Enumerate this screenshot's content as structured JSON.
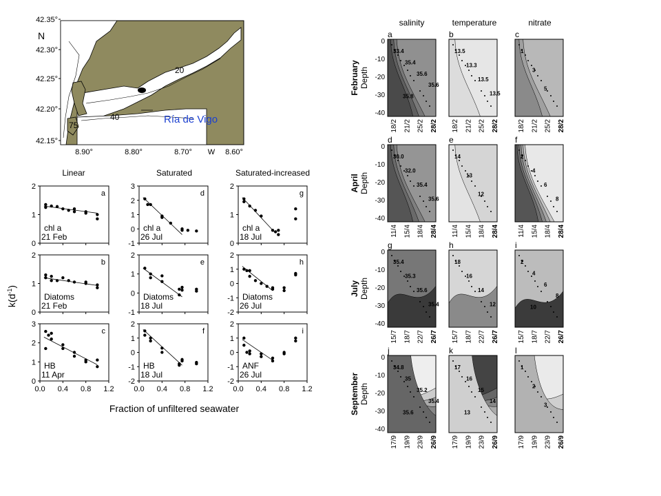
{
  "map": {
    "lat_labels": [
      "42.35°",
      "42.30°",
      "42.25°",
      "42.20°",
      "42.15°"
    ],
    "lon_labels": [
      "8.90°",
      "8.80°",
      "8.70°",
      "W",
      "8.60°"
    ],
    "north": "N",
    "place": "Ría de Vigo",
    "depths": [
      "20",
      "40",
      "75"
    ],
    "colors": {
      "land": "#8f8a5f",
      "sea": "#ffffff",
      "place": "#1a3fd0"
    }
  },
  "dilution": {
    "columns": [
      "Linear",
      "Saturated",
      "Saturated-increased"
    ],
    "ylabel": "k(d",
    "ylabel_sup": "-1",
    "ylabel_close": ")",
    "xlabel": "Fraction of unfiltered seawater",
    "xticks": [
      "0.0",
      "0.4",
      "0.8",
      "1.2"
    ],
    "panels": [
      {
        "letter": "a",
        "l1": "chl a",
        "l2": "21 Feb",
        "ymin": 0,
        "ymax": 2,
        "ticks": [
          "0",
          "1",
          "2"
        ],
        "pts": [
          [
            0.1,
            1.35
          ],
          [
            0.1,
            1.25
          ],
          [
            0.2,
            1.3
          ],
          [
            0.3,
            1.28
          ],
          [
            0.4,
            1.2
          ],
          [
            0.5,
            1.15
          ],
          [
            0.6,
            1.2
          ],
          [
            0.6,
            1.1
          ],
          [
            0.8,
            1.1
          ],
          [
            0.8,
            1.05
          ],
          [
            1.0,
            1.0
          ],
          [
            1.0,
            0.85
          ]
        ],
        "line": [
          [
            0.07,
            1.3
          ],
          [
            1.0,
            1.05
          ]
        ]
      },
      {
        "letter": "d",
        "l1": "chl a",
        "l2": "26 Jul",
        "ymin": -1,
        "ymax": 3,
        "ticks": [
          "-1",
          "0",
          "1",
          "2",
          "3"
        ],
        "pts": [
          [
            0.1,
            2.1
          ],
          [
            0.15,
            1.7
          ],
          [
            0.2,
            1.7
          ],
          [
            0.4,
            0.9
          ],
          [
            0.4,
            0.8
          ],
          [
            0.55,
            0.4
          ],
          [
            0.75,
            -0.1
          ],
          [
            0.75,
            0.0
          ],
          [
            0.85,
            -0.1
          ],
          [
            1.0,
            -0.15
          ]
        ],
        "line": [
          [
            0.07,
            2.2
          ],
          [
            0.75,
            -0.4
          ]
        ]
      },
      {
        "letter": "g",
        "l1": "chl a",
        "l2": "18 Jul",
        "ymin": 0,
        "ymax": 2,
        "ticks": [
          "0",
          "1",
          "2"
        ],
        "pts": [
          [
            0.1,
            1.55
          ],
          [
            0.1,
            1.45
          ],
          [
            0.2,
            1.3
          ],
          [
            0.3,
            1.15
          ],
          [
            0.4,
            0.95
          ],
          [
            0.6,
            0.45
          ],
          [
            0.65,
            0.4
          ],
          [
            0.7,
            0.3
          ],
          [
            0.7,
            0.45
          ],
          [
            1.0,
            1.2
          ],
          [
            1.0,
            0.85
          ]
        ],
        "line": [
          [
            0.07,
            1.6
          ],
          [
            0.65,
            0.35
          ]
        ]
      },
      {
        "letter": "b",
        "l1": "Diatoms",
        "l2": "21 Feb",
        "ymin": 0,
        "ymax": 2,
        "ticks": [
          "0",
          "1",
          "2"
        ],
        "pts": [
          [
            0.1,
            1.3
          ],
          [
            0.1,
            1.2
          ],
          [
            0.2,
            1.25
          ],
          [
            0.2,
            1.1
          ],
          [
            0.3,
            1.1
          ],
          [
            0.4,
            1.2
          ],
          [
            0.5,
            1.1
          ],
          [
            0.6,
            1.05
          ],
          [
            0.8,
            1.05
          ],
          [
            0.8,
            1.0
          ],
          [
            1.0,
            0.95
          ],
          [
            1.0,
            0.85
          ]
        ],
        "line": [
          [
            0.07,
            1.2
          ],
          [
            1.0,
            0.93
          ]
        ]
      },
      {
        "letter": "e",
        "l1": "Diatoms",
        "l2": "18 Jul",
        "ymin": -1,
        "ymax": 2,
        "ticks": [
          "-1",
          "0",
          "1",
          "2"
        ],
        "pts": [
          [
            0.1,
            1.3
          ],
          [
            0.2,
            1.0
          ],
          [
            0.2,
            0.8
          ],
          [
            0.4,
            0.9
          ],
          [
            0.4,
            0.6
          ],
          [
            0.7,
            -0.1
          ],
          [
            0.7,
            0.2
          ],
          [
            0.75,
            0.3
          ],
          [
            0.75,
            0.15
          ],
          [
            1.0,
            0.2
          ],
          [
            1.0,
            0.1
          ]
        ],
        "line": [
          [
            0.07,
            1.3
          ],
          [
            0.75,
            -0.2
          ]
        ]
      },
      {
        "letter": "h",
        "l1": "Diatoms",
        "l2": "26 Jul",
        "ymin": -2,
        "ymax": 2,
        "ticks": [
          "-2",
          "-1",
          "0",
          "1",
          "2"
        ],
        "pts": [
          [
            0.1,
            1.0
          ],
          [
            0.15,
            0.9
          ],
          [
            0.2,
            0.9
          ],
          [
            0.2,
            0.5
          ],
          [
            0.3,
            0.2
          ],
          [
            0.4,
            0.0
          ],
          [
            0.5,
            -0.2
          ],
          [
            0.6,
            -0.4
          ],
          [
            0.6,
            -0.3
          ],
          [
            0.8,
            -0.3
          ],
          [
            0.8,
            -0.5
          ],
          [
            1.0,
            0.7
          ],
          [
            1.0,
            0.6
          ]
        ],
        "line": [
          [
            0.07,
            1.2
          ],
          [
            0.6,
            -0.5
          ]
        ]
      },
      {
        "letter": "c",
        "l1": "HB",
        "l2": "11 Apr",
        "ymin": 0,
        "ymax": 3,
        "ticks": [
          "0",
          "1",
          "2",
          "3"
        ],
        "pts": [
          [
            0.1,
            2.6
          ],
          [
            0.15,
            2.4
          ],
          [
            0.2,
            2.5
          ],
          [
            0.2,
            2.2
          ],
          [
            0.1,
            1.7
          ],
          [
            0.4,
            1.9
          ],
          [
            0.4,
            1.7
          ],
          [
            0.6,
            1.5
          ],
          [
            0.6,
            1.3
          ],
          [
            0.8,
            1.1
          ],
          [
            0.8,
            1.0
          ],
          [
            1.0,
            1.1
          ],
          [
            1.0,
            0.75
          ]
        ],
        "line": [
          [
            0.07,
            2.3
          ],
          [
            1.0,
            0.85
          ]
        ]
      },
      {
        "letter": "f",
        "l1": "HB",
        "l2": "18 Jul",
        "ymin": -2,
        "ymax": 2,
        "ticks": [
          "-2",
          "-1",
          "0",
          "1",
          "2"
        ],
        "pts": [
          [
            0.1,
            1.5
          ],
          [
            0.1,
            1.2
          ],
          [
            0.2,
            1.0
          ],
          [
            0.2,
            0.8
          ],
          [
            0.4,
            0.3
          ],
          [
            0.4,
            0.0
          ],
          [
            0.7,
            -0.8
          ],
          [
            0.7,
            -0.9
          ],
          [
            0.75,
            -0.6
          ],
          [
            0.75,
            -0.5
          ],
          [
            1.0,
            -0.7
          ],
          [
            1.0,
            -0.8
          ]
        ],
        "line": [
          [
            0.07,
            1.6
          ],
          [
            0.75,
            -0.9
          ]
        ]
      },
      {
        "letter": "i",
        "l1": "ANF",
        "l2": "26 Jul",
        "ymin": -2,
        "ymax": 2,
        "ticks": [
          "-2",
          "-1",
          "0",
          "1",
          "2"
        ],
        "pts": [
          [
            0.1,
            1.0
          ],
          [
            0.1,
            0.5
          ],
          [
            0.15,
            0.0
          ],
          [
            0.2,
            0.1
          ],
          [
            0.2,
            -0.1
          ],
          [
            0.4,
            -0.1
          ],
          [
            0.4,
            -0.3
          ],
          [
            0.6,
            -0.4
          ],
          [
            0.6,
            -0.6
          ],
          [
            0.8,
            -0.1
          ],
          [
            0.8,
            0.0
          ],
          [
            1.0,
            1.0
          ],
          [
            1.0,
            0.8
          ]
        ],
        "line": [
          [
            0.07,
            0.9
          ],
          [
            0.6,
            -0.55
          ]
        ]
      }
    ]
  },
  "sections": {
    "columns": [
      "salinity",
      "temperature",
      "nitrate"
    ],
    "months": [
      "February",
      "April",
      "July",
      "September"
    ],
    "depth_label": "Depth",
    "yticks": [
      "0",
      "-10",
      "-20",
      "-30",
      "-40"
    ],
    "letters": [
      [
        "a",
        "b",
        "c"
      ],
      [
        "d",
        "e",
        "f"
      ],
      [
        "g",
        "h",
        "i"
      ],
      [
        "j",
        "k",
        "l"
      ]
    ],
    "dates": [
      [
        "18/2",
        "21/2",
        "25/2",
        "28/2"
      ],
      [
        "11/4",
        "15/4",
        "18/4",
        "28/4"
      ],
      [
        "15/7",
        "18/7",
        "22/7",
        "26/7"
      ],
      [
        "17/9",
        "19/9",
        "23/9",
        "26/9"
      ]
    ],
    "labels": {
      "a": [
        "33.4",
        "35.4",
        "35.6",
        "35.6",
        "35.8"
      ],
      "b": [
        "13.5",
        "13.3",
        "13.5",
        "13.5"
      ],
      "c": [
        "1",
        "3",
        "5"
      ],
      "d": [
        "30.0",
        "32.0",
        "35.4",
        "35.6"
      ],
      "e": [
        "14",
        "13",
        "12"
      ],
      "f": [
        "2",
        "4",
        "6",
        "8"
      ],
      "g": [
        "35.4",
        "35.3",
        "35.6",
        "35.4"
      ],
      "h": [
        "18",
        "16",
        "14",
        "12"
      ],
      "i": [
        "2",
        "4",
        "6",
        "8",
        "10"
      ],
      "j": [
        "34.8",
        "35",
        "35.2",
        "35.4",
        "35.6"
      ],
      "k": [
        "17",
        "16",
        "15",
        "14",
        "13"
      ],
      "l": [
        "1",
        "2",
        "3"
      ]
    }
  }
}
